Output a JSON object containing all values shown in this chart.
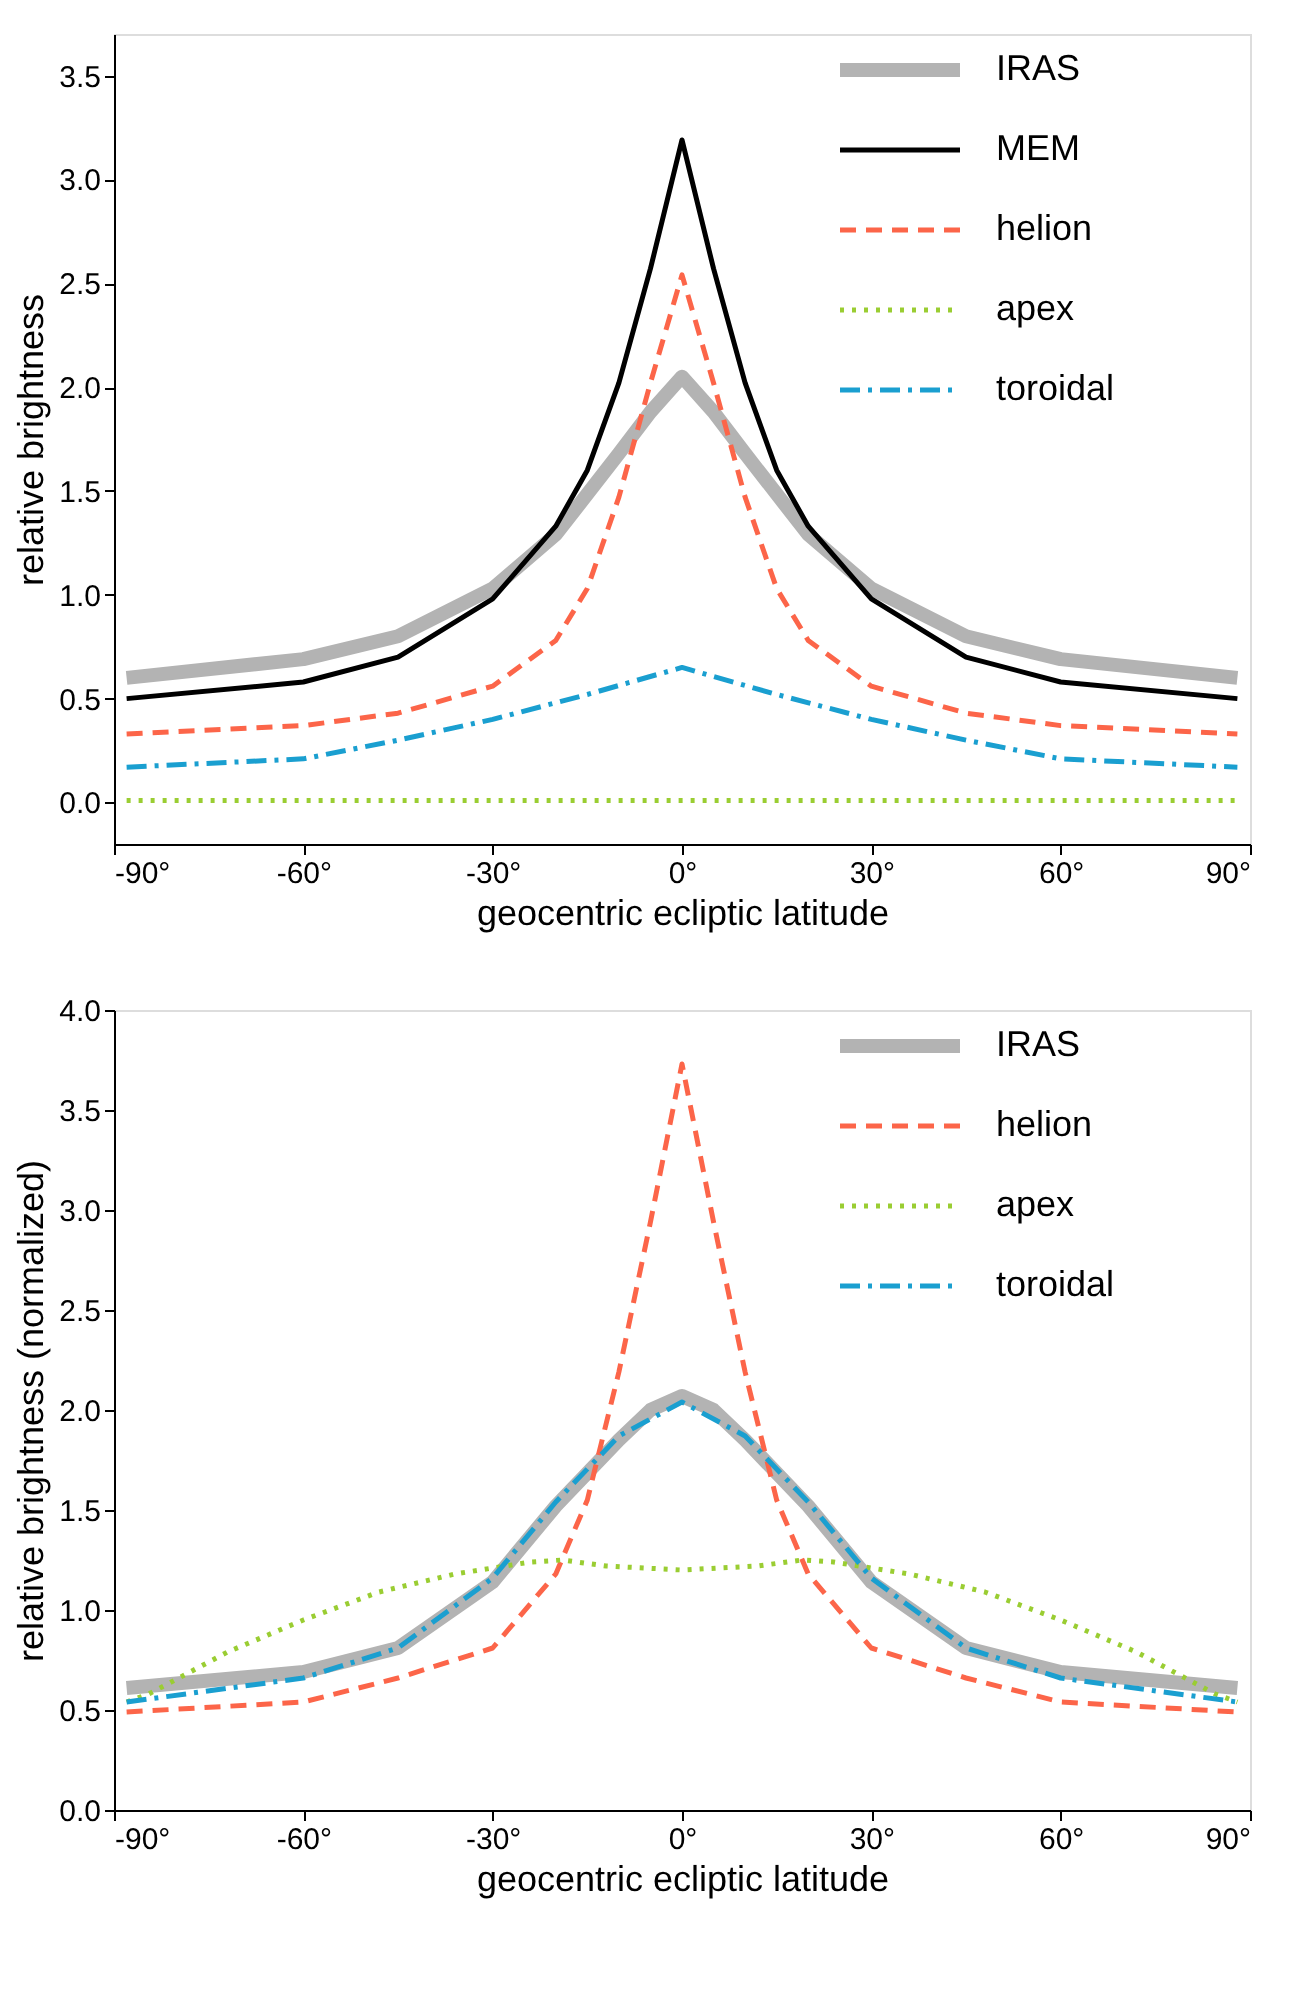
{
  "chart_data": [
    {
      "type": "line",
      "xlabel": "geocentric ecliptic latitude",
      "ylabel": "relative brightness",
      "xlim": [
        -90,
        90
      ],
      "ylim": [
        -0.2,
        3.7
      ],
      "xticks": [
        {
          "value": -90,
          "label": "-90°"
        },
        {
          "value": -60,
          "label": "-60°"
        },
        {
          "value": -30,
          "label": "-30°"
        },
        {
          "value": 0,
          "label": "0°"
        },
        {
          "value": 30,
          "label": "30°"
        },
        {
          "value": 60,
          "label": "60°"
        },
        {
          "value": 90,
          "label": "90°"
        }
      ],
      "yticks": [
        {
          "value": 0,
          "label": "0.0"
        },
        {
          "value": 0.5,
          "label": "0.5"
        },
        {
          "value": 1,
          "label": "1.0"
        },
        {
          "value": 1.5,
          "label": "1.5"
        },
        {
          "value": 2,
          "label": "2.0"
        },
        {
          "value": 2.5,
          "label": "2.5"
        },
        {
          "value": 3,
          "label": "3.0"
        },
        {
          "value": 3.5,
          "label": "3.5"
        }
      ],
      "grid": false,
      "legend": "top right",
      "series": [
        {
          "name": "IRAS",
          "color": "#b3b3b3",
          "line_style": "solid",
          "x": [
            -88,
            -60,
            -45,
            -30,
            -20,
            -10,
            -5,
            0,
            5,
            10,
            20,
            30,
            45,
            60,
            88
          ],
          "values": [
            0.6,
            0.69,
            0.8,
            1.03,
            1.29,
            1.68,
            1.88,
            2.05,
            1.88,
            1.68,
            1.29,
            1.03,
            0.8,
            0.69,
            0.6
          ]
        },
        {
          "name": "MEM",
          "color": "#000000",
          "line_style": "solid",
          "x": [
            -88,
            -60,
            -45,
            -30,
            -20,
            -15,
            -10,
            -5,
            0,
            5,
            10,
            15,
            20,
            30,
            45,
            60,
            88
          ],
          "values": [
            0.5,
            0.58,
            0.7,
            0.98,
            1.33,
            1.6,
            2.02,
            2.57,
            3.19,
            2.57,
            2.02,
            1.6,
            1.33,
            0.98,
            0.7,
            0.58,
            0.5
          ]
        },
        {
          "name": "helion",
          "color": "#fc6549",
          "line_style": "dashed",
          "x": [
            -88,
            -60,
            -45,
            -30,
            -20,
            -15,
            -10,
            -5,
            0,
            5,
            10,
            15,
            20,
            30,
            45,
            60,
            88
          ],
          "values": [
            0.33,
            0.37,
            0.43,
            0.56,
            0.78,
            1.03,
            1.47,
            2.02,
            2.54,
            2.02,
            1.47,
            1.03,
            0.78,
            0.56,
            0.43,
            0.37,
            0.33
          ]
        },
        {
          "name": "apex",
          "color": "#9acd32",
          "line_style": "dotted",
          "x": [
            -88,
            0,
            88
          ],
          "values": [
            0.01,
            0.01,
            0.01
          ]
        },
        {
          "name": "toroidal",
          "color": "#1a9fd0",
          "line_style": "dashdot",
          "x": [
            -88,
            -60,
            -45,
            -30,
            -15,
            0,
            15,
            30,
            45,
            60,
            88
          ],
          "values": [
            0.17,
            0.21,
            0.3,
            0.4,
            0.52,
            0.65,
            0.52,
            0.4,
            0.3,
            0.21,
            0.17
          ]
        }
      ]
    },
    {
      "type": "line",
      "xlabel": "geocentric ecliptic latitude",
      "ylabel": "relative brightness (normalized)",
      "xlim": [
        -90,
        90
      ],
      "ylim": [
        0,
        4
      ],
      "xticks": [
        {
          "value": -90,
          "label": "-90°"
        },
        {
          "value": -60,
          "label": "-60°"
        },
        {
          "value": -30,
          "label": "-30°"
        },
        {
          "value": 0,
          "label": "0°"
        },
        {
          "value": 30,
          "label": "30°"
        },
        {
          "value": 60,
          "label": "60°"
        },
        {
          "value": 90,
          "label": "90°"
        }
      ],
      "yticks": [
        {
          "value": 0,
          "label": "0.0"
        },
        {
          "value": 0.5,
          "label": "0.5"
        },
        {
          "value": 1,
          "label": "1.0"
        },
        {
          "value": 1.5,
          "label": "1.5"
        },
        {
          "value": 2,
          "label": "2.0"
        },
        {
          "value": 2.5,
          "label": "2.5"
        },
        {
          "value": 3,
          "label": "3.0"
        },
        {
          "value": 3.5,
          "label": "3.5"
        },
        {
          "value": 4,
          "label": "4.0"
        }
      ],
      "grid": false,
      "legend": "top right",
      "series": [
        {
          "name": "IRAS",
          "color": "#b3b3b3",
          "line_style": "solid",
          "x": [
            -88,
            -60,
            -45,
            -30,
            -20,
            -10,
            -5,
            0,
            5,
            10,
            20,
            30,
            45,
            60,
            88
          ],
          "values": [
            0.61,
            0.69,
            0.81,
            1.14,
            1.52,
            1.85,
            2.0,
            2.07,
            2.0,
            1.85,
            1.52,
            1.14,
            0.81,
            0.69,
            0.61
          ]
        },
        {
          "name": "helion",
          "color": "#fc6549",
          "line_style": "dashed",
          "x": [
            -88,
            -60,
            -45,
            -30,
            -20,
            -15,
            -10,
            -5,
            0,
            5,
            10,
            15,
            20,
            30,
            45,
            60,
            88
          ],
          "values": [
            0.49,
            0.54,
            0.66,
            0.81,
            1.18,
            1.55,
            2.19,
            2.94,
            3.73,
            2.94,
            2.19,
            1.55,
            1.18,
            0.81,
            0.66,
            0.54,
            0.49
          ]
        },
        {
          "name": "apex",
          "color": "#9acd32",
          "line_style": "dotted",
          "x": [
            -88,
            -84.5,
            -72,
            -60,
            -48,
            -36,
            -24,
            -19,
            -12,
            0,
            12,
            19,
            24,
            36,
            48,
            60,
            72,
            84.5,
            88
          ],
          "values": [
            0.54,
            0.58,
            0.79,
            0.95,
            1.09,
            1.18,
            1.24,
            1.25,
            1.22,
            1.2,
            1.22,
            1.25,
            1.24,
            1.18,
            1.09,
            0.95,
            0.79,
            0.58,
            0.54
          ]
        },
        {
          "name": "toroidal",
          "color": "#1a9fd0",
          "line_style": "dashdot",
          "x": [
            -88,
            -60,
            -45,
            -30,
            -20,
            -10,
            0,
            10,
            20,
            30,
            45,
            60,
            88
          ],
          "values": [
            0.54,
            0.66,
            0.81,
            1.16,
            1.54,
            1.87,
            2.04,
            1.87,
            1.54,
            1.16,
            0.81,
            0.66,
            0.54
          ]
        }
      ]
    }
  ]
}
